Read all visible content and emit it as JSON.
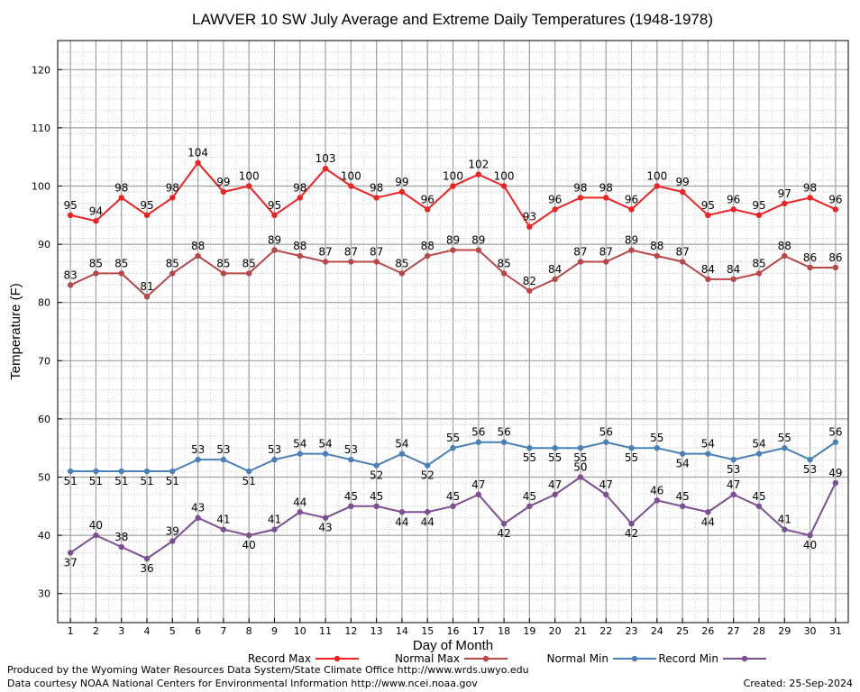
{
  "chart_data": {
    "type": "line",
    "title": "LAWVER 10 SW July Average and Extreme Daily Temperatures (1948-1978)",
    "xlabel": "Day of Month",
    "ylabel": "Temperature (F)",
    "x": [
      1,
      2,
      3,
      4,
      5,
      6,
      7,
      8,
      9,
      10,
      11,
      12,
      13,
      14,
      15,
      16,
      17,
      18,
      19,
      20,
      21,
      22,
      23,
      24,
      25,
      26,
      27,
      28,
      29,
      30,
      31
    ],
    "xlim": [
      0.5,
      31.5
    ],
    "ylim": [
      25,
      125
    ],
    "yticks": [
      30,
      40,
      50,
      60,
      70,
      80,
      90,
      100,
      110,
      120
    ],
    "grid": true,
    "legend_position": "bottom",
    "series": [
      {
        "name": "Record Max",
        "color": "#ee2222",
        "label_side": "above",
        "values": [
          95,
          94,
          98,
          95,
          98,
          104,
          99,
          100,
          95,
          98,
          103,
          100,
          98,
          99,
          96,
          100,
          102,
          100,
          93,
          96,
          98,
          98,
          96,
          100,
          99,
          95,
          96,
          95,
          97,
          98,
          96
        ]
      },
      {
        "name": "Normal Max",
        "color": "#b84848",
        "label_side": "above",
        "values": [
          83,
          85,
          85,
          81,
          85,
          88,
          85,
          85,
          89,
          88,
          87,
          87,
          87,
          85,
          88,
          89,
          89,
          85,
          82,
          84,
          87,
          87,
          89,
          88,
          87,
          84,
          84,
          85,
          88,
          86,
          86
        ]
      },
      {
        "name": "Normal Min",
        "color": "#4a80b8",
        "label_side": "mixed",
        "values": [
          51,
          51,
          51,
          51,
          51,
          53,
          53,
          51,
          53,
          54,
          54,
          53,
          52,
          54,
          52,
          55,
          56,
          56,
          55,
          55,
          55,
          56,
          55,
          55,
          54,
          54,
          53,
          54,
          55,
          53,
          56
        ]
      },
      {
        "name": "Record Min",
        "color": "#7c4f92",
        "label_side": "mixed",
        "values": [
          37,
          40,
          38,
          36,
          39,
          43,
          41,
          40,
          41,
          44,
          43,
          45,
          45,
          44,
          44,
          45,
          47,
          42,
          45,
          47,
          50,
          47,
          42,
          46,
          45,
          44,
          47,
          45,
          41,
          40,
          49
        ]
      }
    ]
  },
  "footer": {
    "credit": "Produced by the Wyoming Water Resources Data System/State Climate Office http://www.wrds.uwyo.edu",
    "source": "Data courtesy NOAA National Centers for Environmental Information http://www.ncei.noaa.gov",
    "created": "Created:  25-Sep-2024"
  }
}
